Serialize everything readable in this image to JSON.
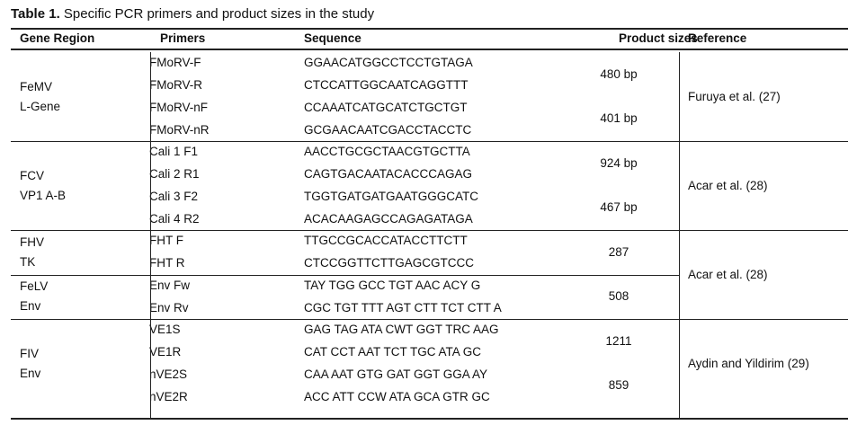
{
  "title": {
    "label": "Table 1.",
    "text": "Specific PCR primers and product sizes in the study"
  },
  "table": {
    "columns": [
      "Gene Region",
      "Primers",
      "Sequence",
      "Product sizes",
      "Reference"
    ],
    "groups": [
      {
        "gene": [
          "FeMV",
          "L-Gene"
        ],
        "primers": [
          {
            "name": "FMoRV-F",
            "sequence": "GGAACATGGCCTCCTGTAGA"
          },
          {
            "name": "FMoRV-R",
            "sequence": "CTCCATTGGCAATCAGGTTT"
          },
          {
            "name": "FMoRV-nF",
            "sequence": "CCAAATCATGCATCTGCTGT"
          },
          {
            "name": "FMoRV-nR",
            "sequence": "GCGAACAATCGACCTACCTC"
          }
        ],
        "products": [
          "480 bp",
          "401 bp"
        ],
        "reference": "Furuya et al. (27)"
      },
      {
        "gene": [
          "FCV",
          "VP1 A-B"
        ],
        "primers": [
          {
            "name": "Cali 1 F1",
            "sequence": "AACCTGCGCTAACGTGCTTA"
          },
          {
            "name": "Cali 2 R1",
            "sequence": "CAGTGACAATACACCCAGAG"
          },
          {
            "name": "Cali 3 F2",
            "sequence": "TGGTGATGATGAATGGGCATC"
          },
          {
            "name": "Cali 4 R2",
            "sequence": "ACACAAGAGCCAGAGATAGA"
          }
        ],
        "products": [
          "924 bp",
          "467 bp"
        ],
        "reference": "Acar et al. (28)"
      },
      {
        "gene": [
          "FHV",
          "TK"
        ],
        "primers": [
          {
            "name": "FHT F",
            "sequence": "TTGCCGCACCATACCTTCTT"
          },
          {
            "name": "FHT R",
            "sequence": "CTCCGGTTCTTGAGCGTCCC"
          }
        ],
        "products": [
          "287"
        ],
        "reference": "Acar et al. (28)"
      },
      {
        "gene": [
          "FeLV",
          "Env"
        ],
        "primers": [
          {
            "name": "Env Fw",
            "sequence": "TAY TGG GCC TGT AAC ACY G"
          },
          {
            "name": "Env Rv",
            "sequence": "CGC TGT TTT AGT CTT TCT CTT A"
          }
        ],
        "products": [
          "508"
        ]
      },
      {
        "gene": [
          "FIV",
          "Env"
        ],
        "primers": [
          {
            "name": "VE1S",
            "sequence": "GAG TAG ATA CWT GGT TRC AAG"
          },
          {
            "name": "VE1R",
            "sequence": "CAT CCT AAT TCT TGC ATA GC"
          },
          {
            "name": "nVE2S",
            "sequence": "CAA AAT GTG GAT GGT GGA AY"
          },
          {
            "name": "nVE2R",
            "sequence": "ACC ATT CCW ATA GCA GTR GC"
          }
        ],
        "products": [
          "1211",
          "859"
        ],
        "reference": "Aydin and Yildirim (29)"
      }
    ]
  }
}
